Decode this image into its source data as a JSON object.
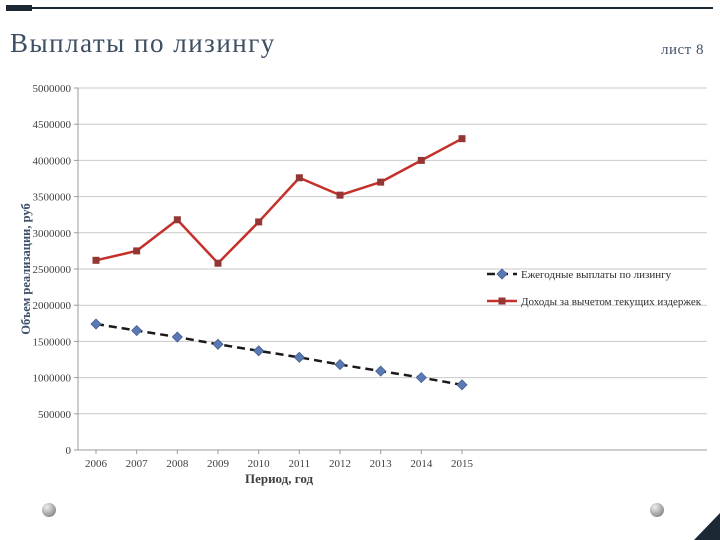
{
  "slide": {
    "title": "Выплаты по лизингу",
    "page_label": "лист 8",
    "accent_color": "#1d2835"
  },
  "chart_data": {
    "type": "line",
    "x": [
      2006,
      2007,
      2008,
      2009,
      2010,
      2011,
      2012,
      2013,
      2014,
      2015
    ],
    "series": [
      {
        "name": "Ежегодные выплаты по лизингу",
        "values": [
          1740000,
          1650000,
          1560000,
          1460000,
          1370000,
          1280000,
          1180000,
          1090000,
          1000000,
          900000
        ],
        "color": "#1a1a1a",
        "dash": true,
        "marker": "diamond",
        "marker_color": "#5b79b5"
      },
      {
        "name": "Доходы за вычетом текущих издержек",
        "values": [
          2620000,
          2750000,
          3180000,
          2580000,
          3150000,
          3760000,
          3520000,
          3700000,
          4000000,
          4300000
        ],
        "color": "#c5302b",
        "dash": false,
        "marker": "square",
        "marker_color": "#943634"
      }
    ],
    "xlabel": "Период, год",
    "ylabel": "Объем реализации, руб",
    "ylim": [
      0,
      5000000
    ],
    "ytick_step": 500000,
    "grid": true,
    "legend_position": "right"
  }
}
